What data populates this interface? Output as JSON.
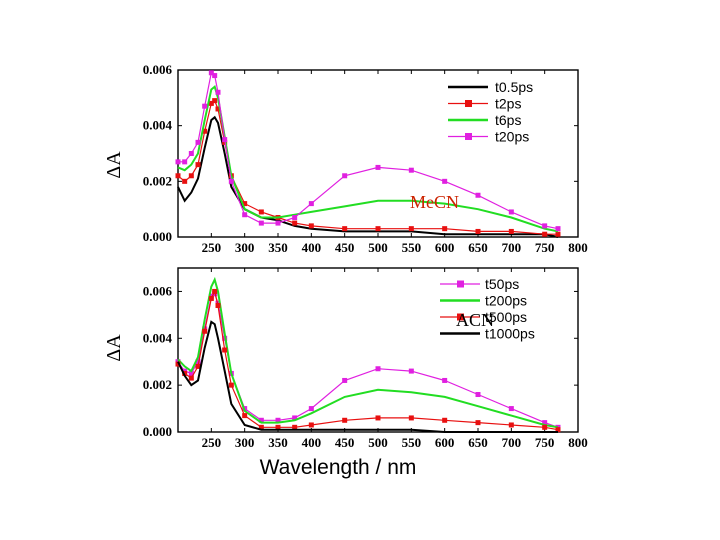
{
  "chart_data": [
    {
      "type": "line",
      "ylabel": "ΔA",
      "xlabel": "",
      "annotation": "MeCN",
      "annotation_color": "#cc2200",
      "xlim": [
        200,
        800
      ],
      "ylim": [
        0,
        0.006
      ],
      "x_ticks": [
        "250",
        "300",
        "350",
        "400",
        "450",
        "500",
        "550",
        "600",
        "650",
        "700",
        "750",
        "800"
      ],
      "y_ticks": [
        "0.000",
        "0.002",
        "0.004",
        "0.006"
      ],
      "legend_position": "top-right",
      "x": [
        200,
        210,
        220,
        230,
        240,
        250,
        255,
        260,
        270,
        280,
        300,
        325,
        350,
        375,
        400,
        450,
        500,
        550,
        600,
        650,
        700,
        750,
        770
      ],
      "series": [
        {
          "name": "t0.5ps",
          "color": "#000000",
          "marker": "line",
          "values": [
            0.0018,
            0.0013,
            0.0016,
            0.0021,
            0.0032,
            0.0042,
            0.0043,
            0.0041,
            0.003,
            0.0018,
            0.001,
            0.0007,
            0.0006,
            0.0004,
            0.0003,
            0.0002,
            0.0002,
            0.0002,
            0.0001,
            0.0001,
            0.0001,
            0.0001,
            0.0
          ]
        },
        {
          "name": "t2ps",
          "color": "#e81010",
          "marker": "square",
          "values": [
            0.0022,
            0.002,
            0.0022,
            0.0026,
            0.0038,
            0.0048,
            0.0049,
            0.0046,
            0.0034,
            0.0022,
            0.0012,
            0.0009,
            0.0007,
            0.0005,
            0.0004,
            0.0003,
            0.0003,
            0.0003,
            0.0003,
            0.0002,
            0.0002,
            0.0001,
            0.0001
          ]
        },
        {
          "name": "t6ps",
          "color": "#22dd22",
          "marker": "line",
          "values": [
            0.0025,
            0.0024,
            0.0026,
            0.003,
            0.0042,
            0.0053,
            0.0054,
            0.005,
            0.0036,
            0.0022,
            0.001,
            0.0007,
            0.0007,
            0.0008,
            0.0009,
            0.0011,
            0.0013,
            0.0013,
            0.0012,
            0.001,
            0.0007,
            0.0003,
            0.0002
          ]
        },
        {
          "name": "t20ps",
          "color": "#e020e0",
          "marker": "square",
          "values": [
            0.0027,
            0.0027,
            0.003,
            0.0034,
            0.0047,
            0.0059,
            0.0058,
            0.0052,
            0.0035,
            0.002,
            0.0008,
            0.0005,
            0.0005,
            0.0007,
            0.0012,
            0.0022,
            0.0025,
            0.0024,
            0.002,
            0.0015,
            0.0009,
            0.0004,
            0.0003
          ]
        }
      ]
    },
    {
      "type": "line",
      "ylabel": "ΔA",
      "xlabel": "Wavelength / nm",
      "annotation": "ACN",
      "annotation_color": "#000000",
      "xlim": [
        200,
        800
      ],
      "ylim": [
        0,
        0.007
      ],
      "x_ticks": [
        "250",
        "300",
        "350",
        "400",
        "450",
        "500",
        "550",
        "600",
        "650",
        "700",
        "750",
        "800"
      ],
      "y_ticks": [
        "0.000",
        "0.002",
        "0.004",
        "0.006"
      ],
      "legend_position": "top-right",
      "x": [
        200,
        210,
        220,
        230,
        240,
        250,
        255,
        260,
        270,
        280,
        300,
        325,
        350,
        375,
        400,
        450,
        500,
        550,
        600,
        650,
        700,
        750,
        770
      ],
      "series": [
        {
          "name": "t50ps",
          "color": "#e020e0",
          "marker": "square",
          "values": [
            0.003,
            0.0026,
            0.0025,
            0.003,
            0.0044,
            0.0058,
            0.0059,
            0.0055,
            0.004,
            0.0025,
            0.001,
            0.0005,
            0.0005,
            0.0006,
            0.001,
            0.0022,
            0.0027,
            0.0026,
            0.0022,
            0.0016,
            0.001,
            0.0004,
            0.0002
          ]
        },
        {
          "name": "t200ps",
          "color": "#22dd22",
          "marker": "line",
          "values": [
            0.0031,
            0.0028,
            0.0026,
            0.0032,
            0.0048,
            0.0062,
            0.0065,
            0.006,
            0.0042,
            0.0025,
            0.0009,
            0.0004,
            0.0004,
            0.0005,
            0.0008,
            0.0015,
            0.0018,
            0.0017,
            0.0015,
            0.0011,
            0.0007,
            0.0003,
            0.0002
          ]
        },
        {
          "name": "t500ps",
          "color": "#e81010",
          "marker": "square",
          "values": [
            0.0029,
            0.0025,
            0.0023,
            0.0028,
            0.0043,
            0.0057,
            0.006,
            0.0054,
            0.0035,
            0.002,
            0.0007,
            0.0002,
            0.0002,
            0.0002,
            0.0003,
            0.0005,
            0.0006,
            0.0006,
            0.0005,
            0.0004,
            0.0003,
            0.0002,
            0.0001
          ]
        },
        {
          "name": "t1000ps",
          "color": "#000000",
          "marker": "line",
          "values": [
            0.003,
            0.0024,
            0.002,
            0.0022,
            0.0036,
            0.0047,
            0.0046,
            0.004,
            0.0026,
            0.0012,
            0.0003,
            0.0001,
            0.0001,
            0.0001,
            0.0001,
            0.0001,
            0.0001,
            0.0001,
            0.0,
            0.0,
            0.0,
            0.0,
            0.0
          ]
        }
      ]
    }
  ]
}
